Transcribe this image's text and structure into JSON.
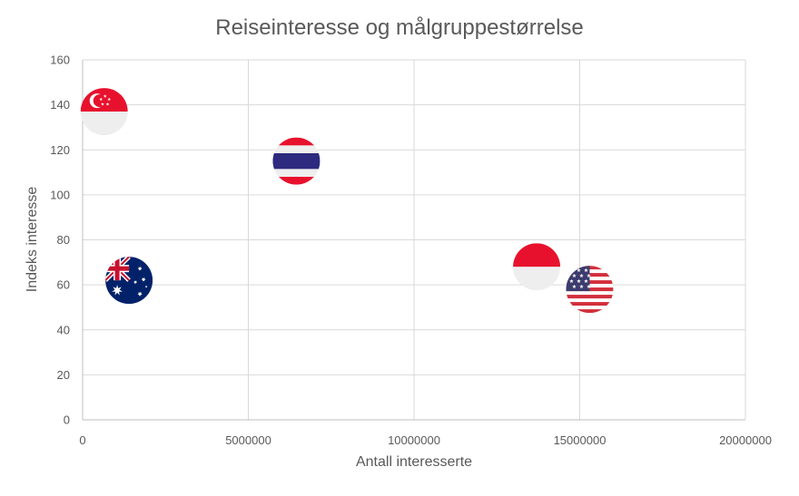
{
  "chart_data": {
    "type": "scatter",
    "title": "Reiseinteresse og målgruppestørrelse",
    "xlabel": "Antall interesserte",
    "ylabel": "Indeks interesse",
    "xlim": [
      0,
      20000000
    ],
    "ylim": [
      0,
      160
    ],
    "x_ticks": [
      0,
      5000000,
      10000000,
      15000000,
      20000000
    ],
    "y_ticks": [
      0,
      20,
      40,
      60,
      80,
      100,
      120,
      140,
      160
    ],
    "x_tick_labels": [
      "0",
      "5000000",
      "10000000",
      "15000000",
      "20000000"
    ],
    "y_tick_labels": [
      "0",
      "20",
      "40",
      "60",
      "80",
      "100",
      "120",
      "140",
      "160"
    ],
    "grid": true,
    "legend": "none",
    "points": [
      {
        "flag": "singapore",
        "x": 650000,
        "y": 137
      },
      {
        "flag": "australia",
        "x": 1400000,
        "y": 62
      },
      {
        "flag": "thailand",
        "x": 6450000,
        "y": 115
      },
      {
        "flag": "indonesia",
        "x": 13700000,
        "y": 68
      },
      {
        "flag": "usa",
        "x": 15300000,
        "y": 58
      }
    ],
    "colors": {
      "text": "#595959",
      "grid": "#d9d9d9",
      "axis": "#bfbfbf",
      "flag_red": "#e8112d",
      "flag_white": "#eeeeee",
      "flag_blue": "#0039a6",
      "thai_blue": "#2d2a7f",
      "usa_blue": "#3c3b6e",
      "usa_red": "#d22f3c"
    }
  }
}
